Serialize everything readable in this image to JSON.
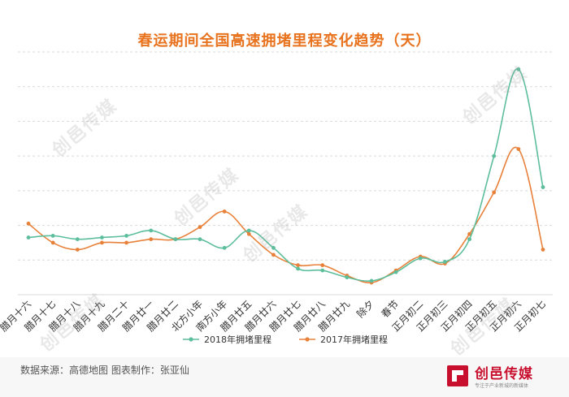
{
  "title": "春运期间全国高速拥堵里程变化趋势（天）",
  "source": "数据来源：高德地图  图表制作：张亚仙",
  "brand": {
    "name": "创邑传媒",
    "tagline": "专注于产业新城的新媒体",
    "color": "#C8102E"
  },
  "watermark_text": "创邑传媒",
  "chart_data": {
    "type": "line",
    "categories": [
      "腊月十六",
      "腊月十七",
      "腊月十八",
      "腊月十九",
      "腊月二十",
      "腊月廿一",
      "腊月廿二",
      "北方小年",
      "南方小年",
      "腊月廿五",
      "腊月廿六",
      "腊月廿七",
      "腊月廿八",
      "腊月廿九",
      "除夕",
      "春节",
      "正月初二",
      "正月初三",
      "正月初四",
      "正月初五",
      "正月初六",
      "正月初七"
    ],
    "series": [
      {
        "name": "2018年拥堵里程",
        "color": "#5DBE9C",
        "values": [
          33,
          34,
          32,
          33,
          34,
          37,
          32,
          32,
          27,
          37,
          27,
          15,
          14,
          10,
          8,
          13,
          21,
          19,
          32,
          80,
          130,
          62
        ]
      },
      {
        "name": "2017年拥堵里程",
        "color": "#E8813A",
        "values": [
          41,
          30,
          26,
          30,
          30,
          32,
          32,
          39,
          48,
          35,
          23,
          17,
          17,
          11,
          7,
          14,
          22,
          18,
          35,
          59,
          84,
          26
        ]
      }
    ],
    "ylim": [
      0,
      140
    ],
    "grid": true,
    "legend": "bottom"
  }
}
